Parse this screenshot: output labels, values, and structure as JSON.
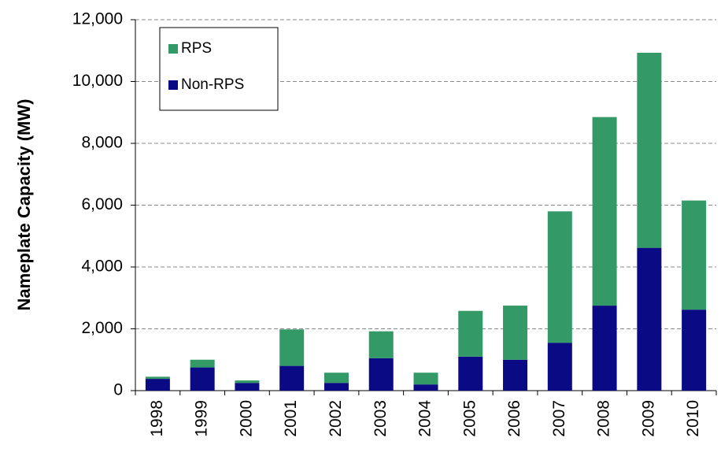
{
  "chart_data": {
    "type": "stacked_bar",
    "y_label": "Nameplate Capacity (MW)",
    "categories": [
      "1998",
      "1999",
      "2000",
      "2001",
      "2002",
      "2003",
      "2004",
      "2005",
      "2006",
      "2007",
      "2008",
      "2009",
      "2010"
    ],
    "series": [
      {
        "name": "Non-RPS",
        "color": "#0a0a84",
        "values": [
          380,
          750,
          250,
          800,
          250,
          1050,
          200,
          1100,
          1000,
          1550,
          2750,
          4620,
          2620
        ]
      },
      {
        "name": "RPS",
        "color": "#339966",
        "values": [
          70,
          250,
          80,
          1180,
          330,
          870,
          380,
          1480,
          1750,
          4250,
          6100,
          6310,
          3530
        ]
      }
    ],
    "ylim": [
      0,
      12000
    ],
    "yticks": [
      0,
      {
        "value": 2000,
        "label": "2,000"
      },
      {
        "value": 4000,
        "label": "4,000"
      },
      {
        "value": 6000,
        "label": "6,000"
      },
      {
        "value": 8000,
        "label": "8,000"
      },
      {
        "value": 10000,
        "label": "10,000"
      },
      {
        "value": 12000,
        "label": "12,000"
      }
    ],
    "grid": true,
    "legend": "upper left"
  }
}
